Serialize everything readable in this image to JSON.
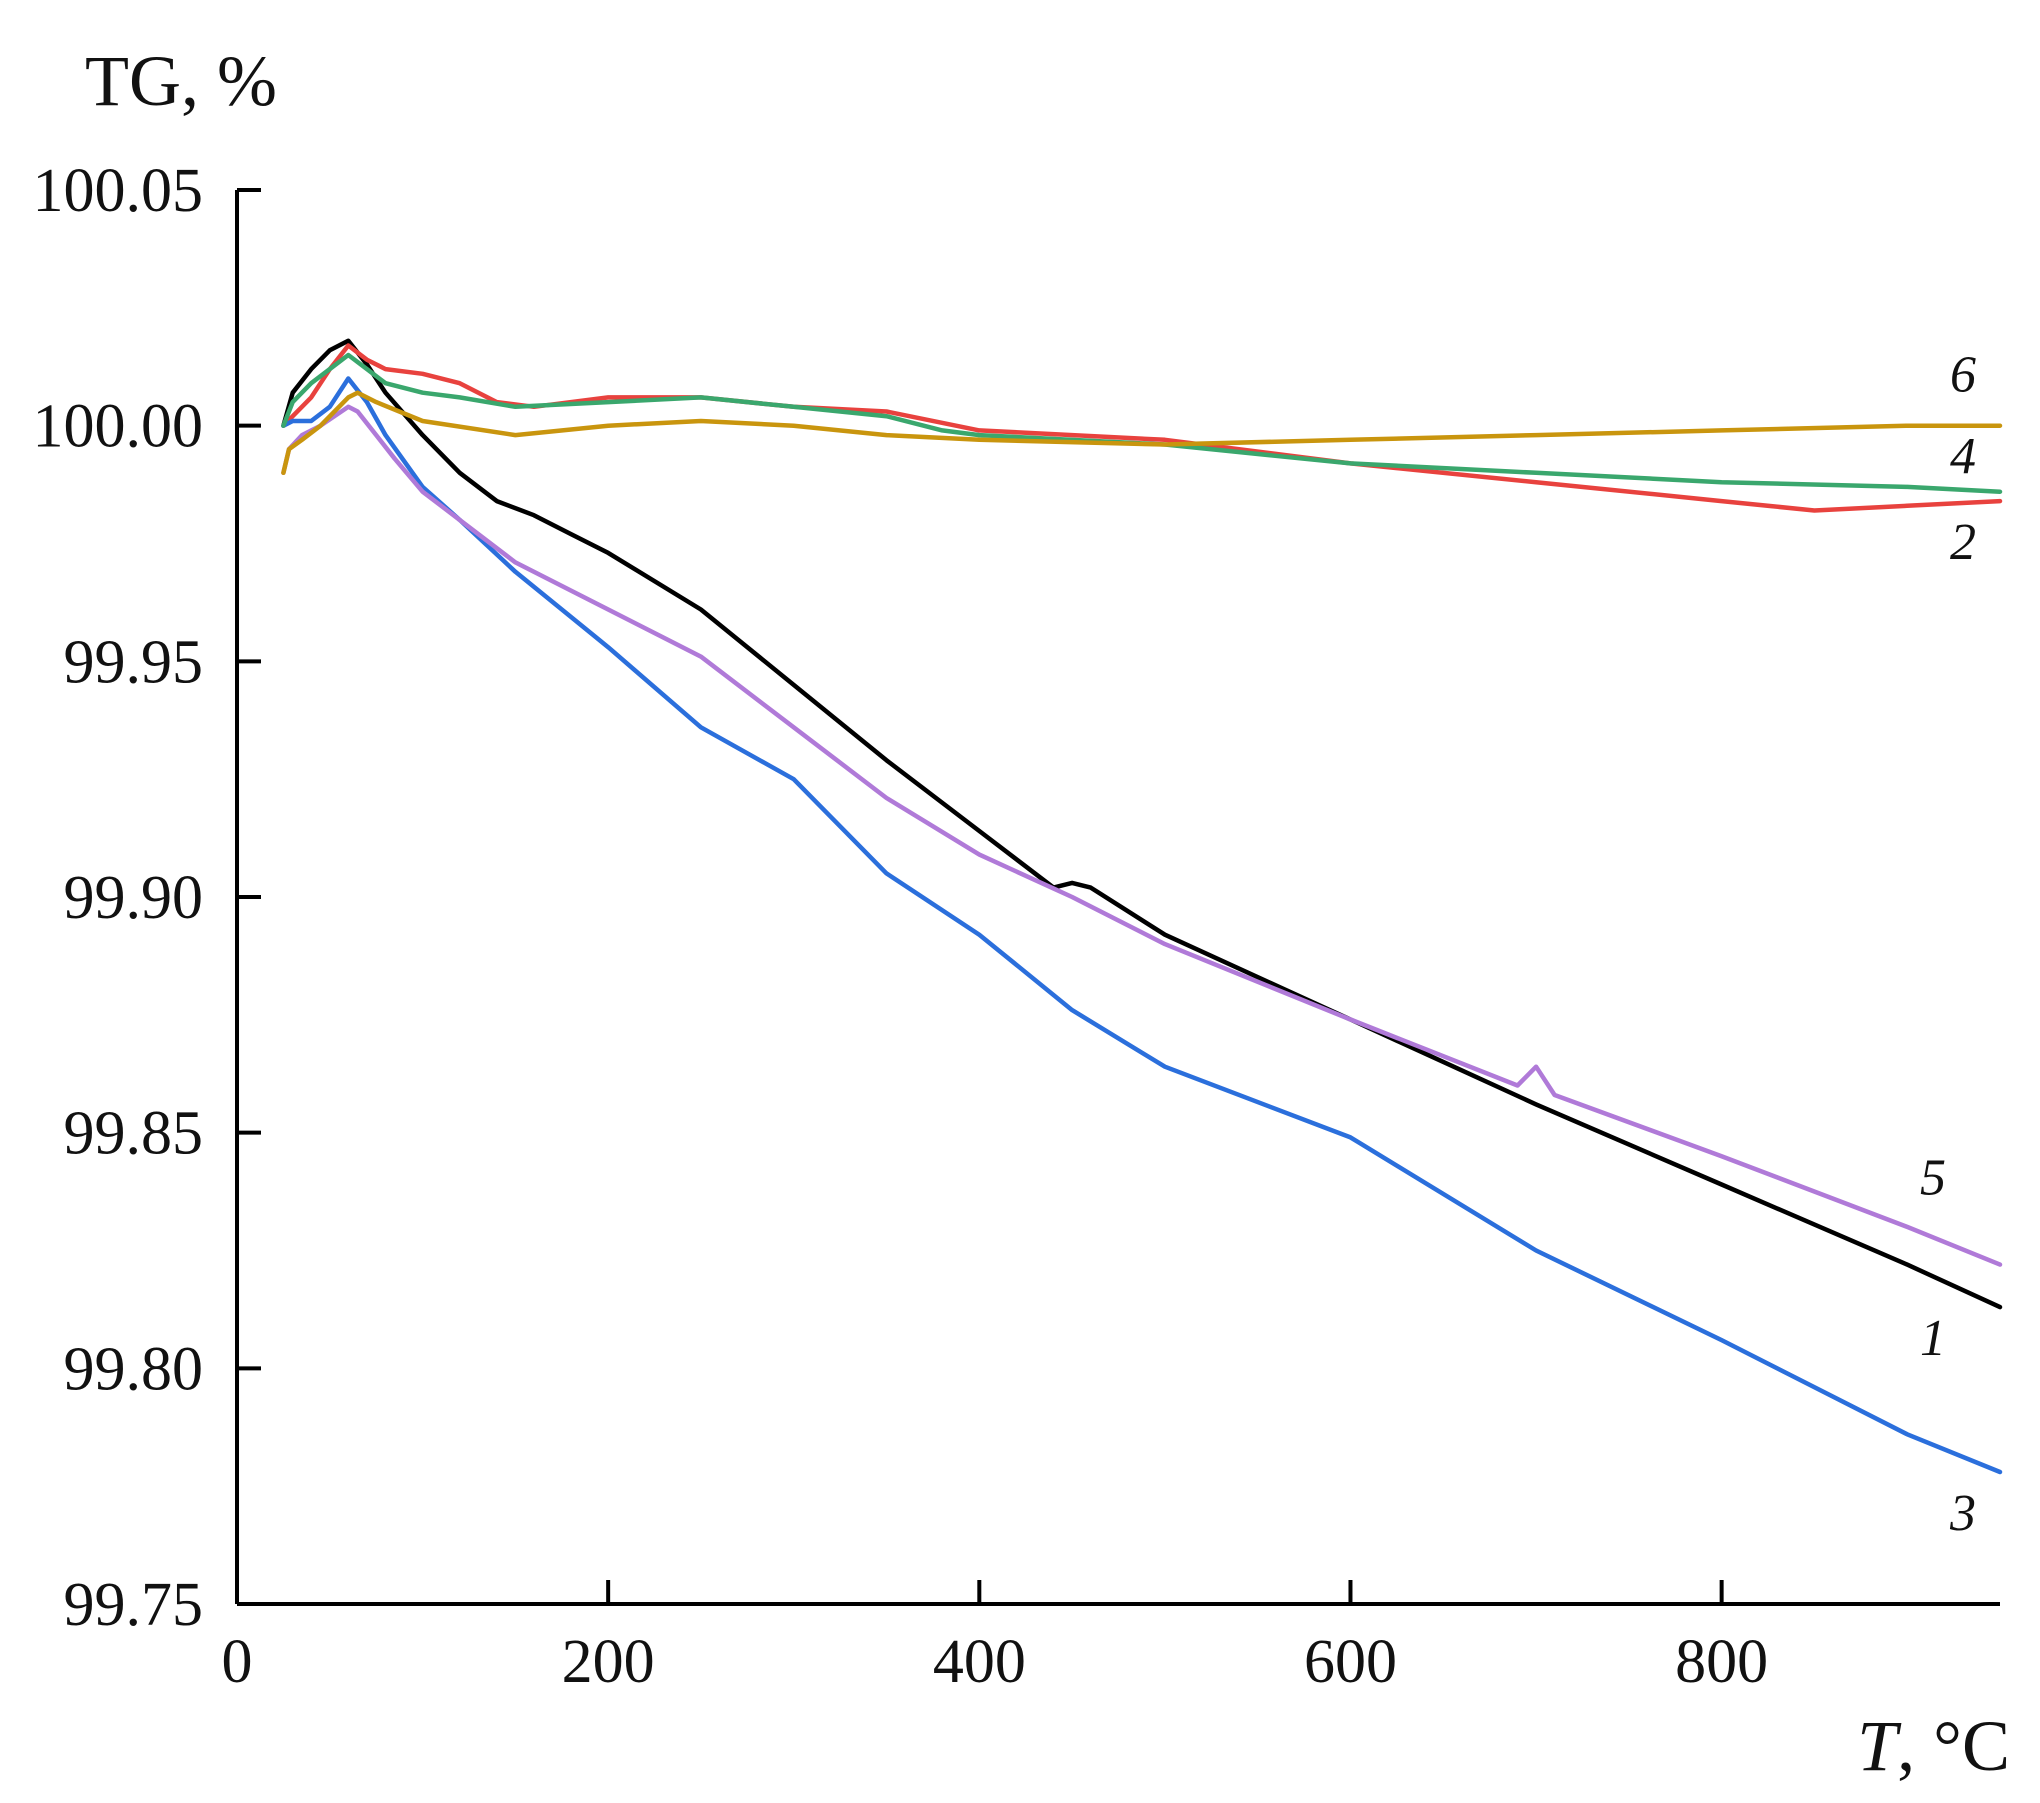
{
  "chart_data": {
    "type": "line",
    "title": "",
    "ylabel": "TG, %",
    "xlabel_var": "T",
    "xlabel_unit": ", °C",
    "xlim": [
      0,
      950
    ],
    "ylim": [
      99.75,
      100.05
    ],
    "xticks": [
      0,
      200,
      400,
      600,
      800
    ],
    "xtick_labels": [
      "0",
      "200",
      "400",
      "600",
      "800"
    ],
    "yticks": [
      99.75,
      99.8,
      99.85,
      99.9,
      99.95,
      100.0,
      100.05
    ],
    "ytick_labels": [
      "99.75",
      "99.80",
      "99.85",
      "99.90",
      "99.95",
      "100.00",
      "100.05"
    ],
    "grid": false,
    "series": [
      {
        "name": "1",
        "color": "#000000",
        "x": [
          25,
          30,
          40,
          50,
          60,
          70,
          80,
          100,
          120,
          140,
          160,
          180,
          200,
          250,
          300,
          350,
          400,
          440,
          450,
          460,
          500,
          600,
          700,
          800,
          900,
          950
        ],
        "y": [
          100.0,
          100.007,
          100.012,
          100.016,
          100.018,
          100.013,
          100.007,
          99.998,
          99.99,
          99.984,
          99.981,
          99.977,
          99.973,
          99.961,
          99.945,
          99.929,
          99.914,
          99.902,
          99.903,
          99.902,
          99.892,
          99.874,
          99.856,
          99.839,
          99.822,
          99.813
        ]
      },
      {
        "name": "2",
        "color": "#e8423e",
        "x": [
          25,
          30,
          40,
          50,
          60,
          70,
          80,
          100,
          120,
          140,
          160,
          200,
          250,
          300,
          350,
          400,
          500,
          600,
          700,
          800,
          850,
          900,
          950
        ],
        "y": [
          100.0,
          100.002,
          100.006,
          100.012,
          100.017,
          100.014,
          100.012,
          100.011,
          100.009,
          100.005,
          100.004,
          100.006,
          100.006,
          100.004,
          100.003,
          99.999,
          99.997,
          99.992,
          99.988,
          99.984,
          99.982,
          99.983,
          99.984
        ]
      },
      {
        "name": "3",
        "color": "#2b6fdc",
        "x": [
          25,
          30,
          40,
          50,
          60,
          70,
          80,
          100,
          120,
          150,
          200,
          250,
          300,
          350,
          400,
          450,
          500,
          600,
          700,
          800,
          900,
          950
        ],
        "y": [
          100.0,
          100.001,
          100.001,
          100.004,
          100.01,
          100.005,
          99.998,
          99.987,
          99.98,
          99.969,
          99.953,
          99.936,
          99.925,
          99.905,
          99.892,
          99.876,
          99.864,
          99.849,
          99.825,
          99.806,
          99.786,
          99.778
        ]
      },
      {
        "name": "4",
        "color": "#3aa76d",
        "x": [
          25,
          30,
          40,
          50,
          60,
          70,
          80,
          100,
          120,
          150,
          200,
          250,
          300,
          350,
          380,
          400,
          500,
          600,
          700,
          800,
          900,
          950
        ],
        "y": [
          100.0,
          100.005,
          100.009,
          100.012,
          100.015,
          100.012,
          100.009,
          100.007,
          100.006,
          100.004,
          100.005,
          100.006,
          100.004,
          100.002,
          99.999,
          99.998,
          99.996,
          99.992,
          99.99,
          99.988,
          99.987,
          99.986
        ]
      },
      {
        "name": "5",
        "color": "#b07ad8",
        "x": [
          25,
          28,
          35,
          45,
          60,
          65,
          75,
          85,
          100,
          120,
          150,
          200,
          250,
          300,
          350,
          400,
          450,
          500,
          600,
          690,
          700,
          710,
          800,
          900,
          950
        ],
        "y": [
          99.99,
          99.995,
          99.998,
          100.0,
          100.004,
          100.003,
          99.998,
          99.993,
          99.986,
          99.98,
          99.971,
          99.961,
          99.951,
          99.936,
          99.921,
          99.909,
          99.9,
          99.89,
          99.874,
          99.86,
          99.864,
          99.858,
          99.845,
          99.83,
          99.822
        ]
      },
      {
        "name": "6",
        "color": "#c9950e",
        "x": [
          25,
          28,
          35,
          45,
          60,
          65,
          75,
          100,
          150,
          200,
          250,
          300,
          350,
          400,
          500,
          600,
          700,
          800,
          900,
          950
        ],
        "y": [
          99.99,
          99.995,
          99.997,
          100.0,
          100.006,
          100.007,
          100.005,
          100.001,
          99.998,
          100.0,
          100.001,
          100.0,
          99.998,
          99.997,
          99.996,
          99.997,
          99.998,
          99.999,
          100.0,
          100.0
        ]
      }
    ],
    "curve_labels": [
      {
        "text": "6",
        "series": "6"
      },
      {
        "text": "4",
        "series": "4"
      },
      {
        "text": "2",
        "series": "2"
      },
      {
        "text": "5",
        "series": "5"
      },
      {
        "text": "1",
        "series": "1"
      },
      {
        "text": "3",
        "series": "3"
      }
    ]
  }
}
